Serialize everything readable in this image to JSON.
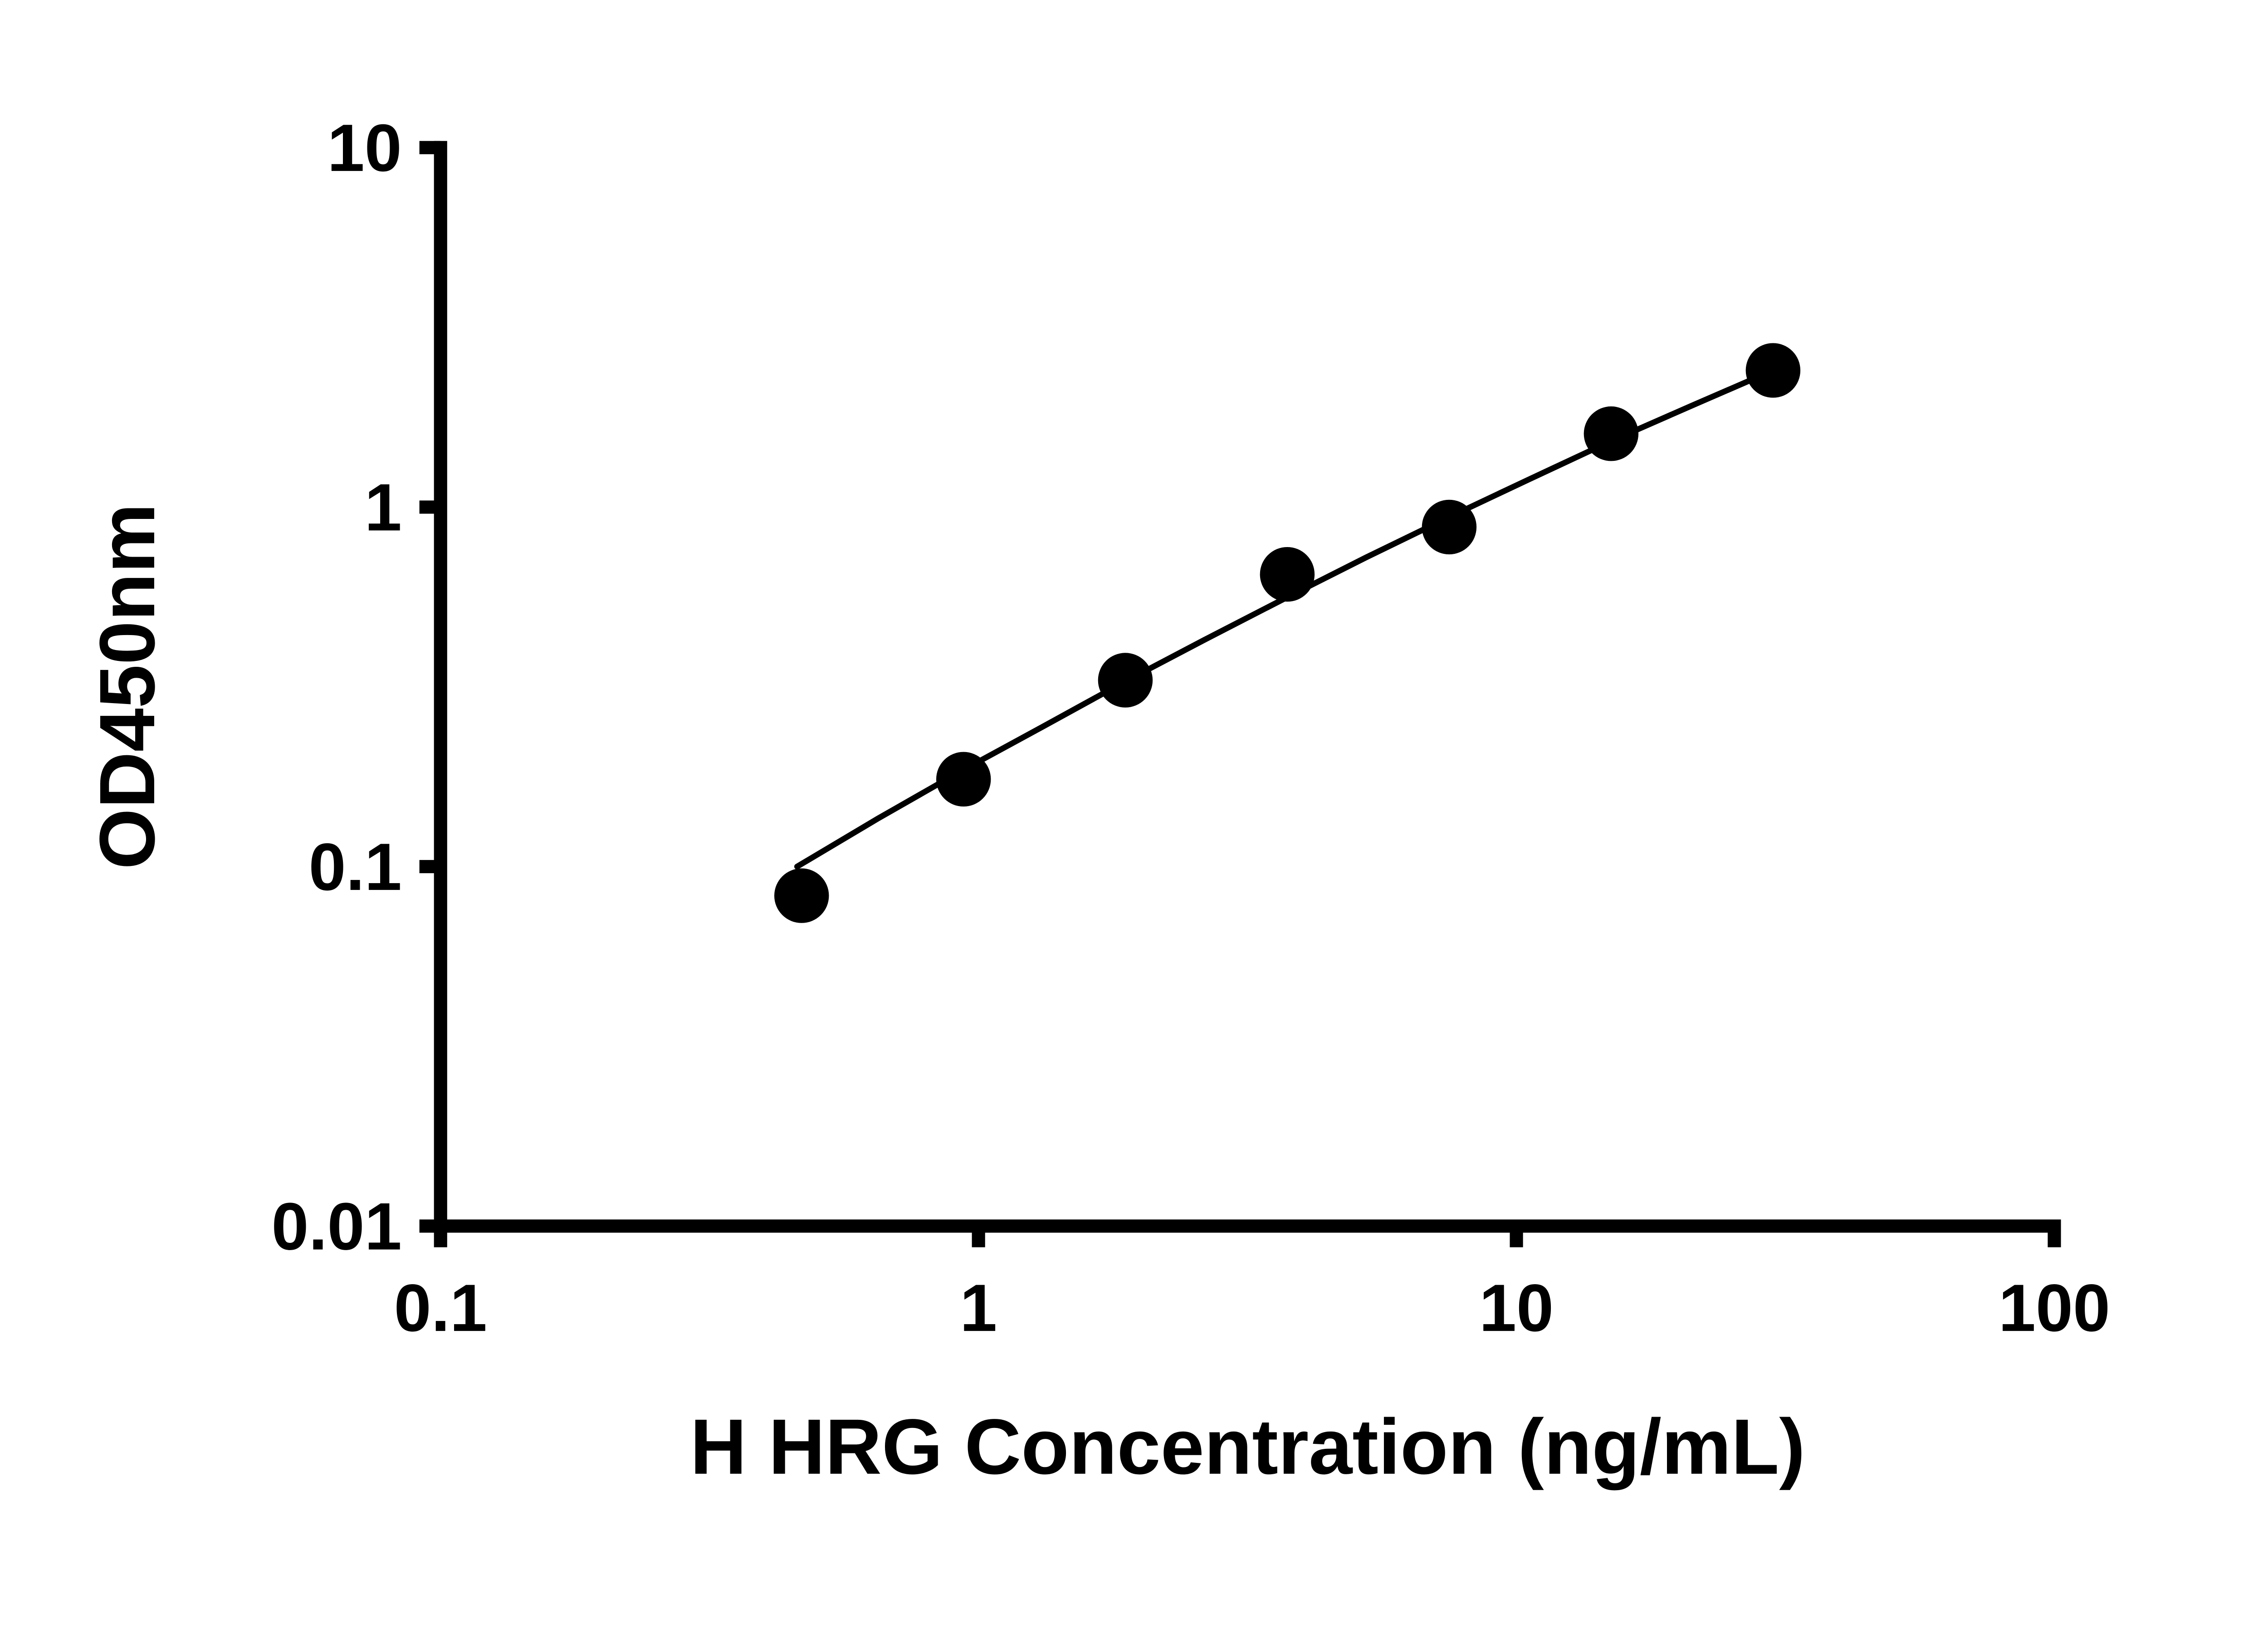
{
  "chart_data": {
    "type": "scatter",
    "title": "",
    "xlabel": "H HRG Concentration (ng/mL)",
    "ylabel": "OD450nm",
    "x_scale": "log",
    "y_scale": "log",
    "xlim": [
      0.1,
      100
    ],
    "ylim": [
      0.01,
      10
    ],
    "x_ticks": [
      0.1,
      1,
      10,
      100
    ],
    "x_tick_labels": [
      "0.1",
      "1",
      "10",
      "100"
    ],
    "y_ticks": [
      0.01,
      0.1,
      1,
      10
    ],
    "y_tick_labels": [
      "0.01",
      "0.1",
      "1",
      "10"
    ],
    "grid": false,
    "legend": "none",
    "series": [
      {
        "name": "fit-curve",
        "type": "line",
        "color": "#000000",
        "x": [
          0.46,
          0.65,
          0.92,
          1.31,
          1.85,
          2.62,
          3.71,
          5.25,
          7.43,
          10.5,
          14.9,
          21.1,
          30
        ],
        "y": [
          0.1,
          0.136,
          0.183,
          0.244,
          0.324,
          0.426,
          0.557,
          0.724,
          0.932,
          1.19,
          1.52,
          1.91,
          2.4
        ]
      },
      {
        "name": "standard-points",
        "type": "scatter",
        "marker": "filled-circle",
        "color": "#000000",
        "x": [
          0.469,
          0.938,
          1.875,
          3.75,
          7.5,
          15,
          30
        ],
        "y": [
          0.083,
          0.175,
          0.33,
          0.65,
          0.88,
          1.6,
          2.4
        ]
      }
    ]
  },
  "colors": {
    "axis": "#000000",
    "marker": "#000000",
    "background": "#ffffff"
  }
}
